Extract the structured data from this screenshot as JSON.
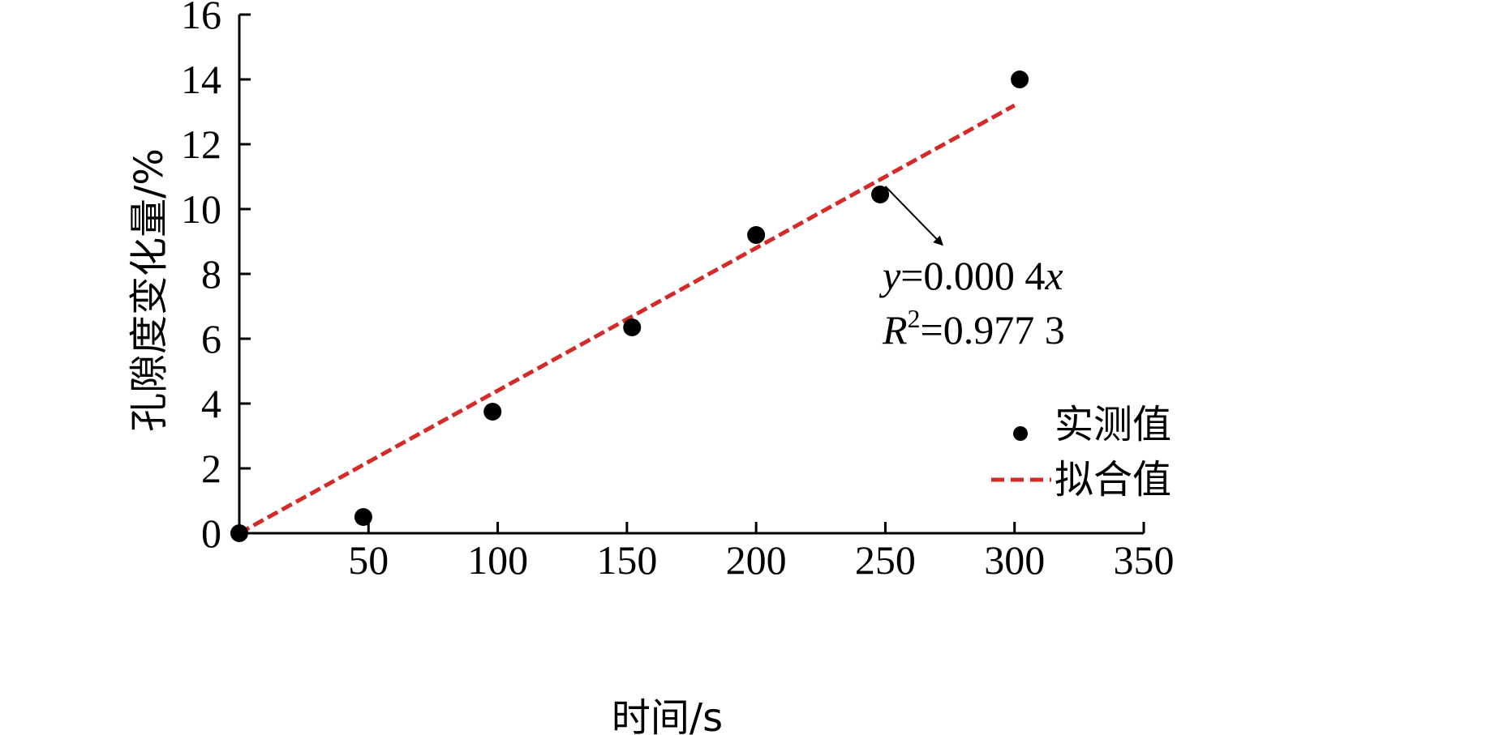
{
  "chart_data": {
    "type": "scatter",
    "xlabel": "时间/s",
    "ylabel": "孔隙度变化量/%",
    "xlim": [
      0,
      350
    ],
    "ylim": [
      0,
      16
    ],
    "xticks": [
      50,
      100,
      150,
      200,
      250,
      300,
      350
    ],
    "yticks": [
      0,
      2,
      4,
      6,
      8,
      10,
      12,
      14,
      16
    ],
    "series": [
      {
        "name": "实测值",
        "kind": "scatter",
        "color": "#000000",
        "x": [
          0,
          48,
          98,
          152,
          200,
          248,
          302
        ],
        "y": [
          0,
          0.5,
          3.75,
          6.35,
          9.2,
          10.45,
          14.0
        ]
      },
      {
        "name": "拟合值",
        "kind": "line",
        "style": "dashed",
        "color": "#d42a2a",
        "x": [
          0,
          300
        ],
        "y": [
          0,
          13.2
        ]
      }
    ],
    "annotation": {
      "eq_y": "y",
      "eq_rest": "=0.000 4",
      "eq_x": "x",
      "r_letter": "R",
      "r_sup": "2",
      "r_rest": "=0.977 3",
      "arrow_from": [
        250,
        10.7
      ],
      "arrow_to": [
        272,
        8.9
      ]
    },
    "legend": {
      "position": "bottom-right",
      "entries": [
        "实测值",
        "拟合值"
      ]
    }
  }
}
